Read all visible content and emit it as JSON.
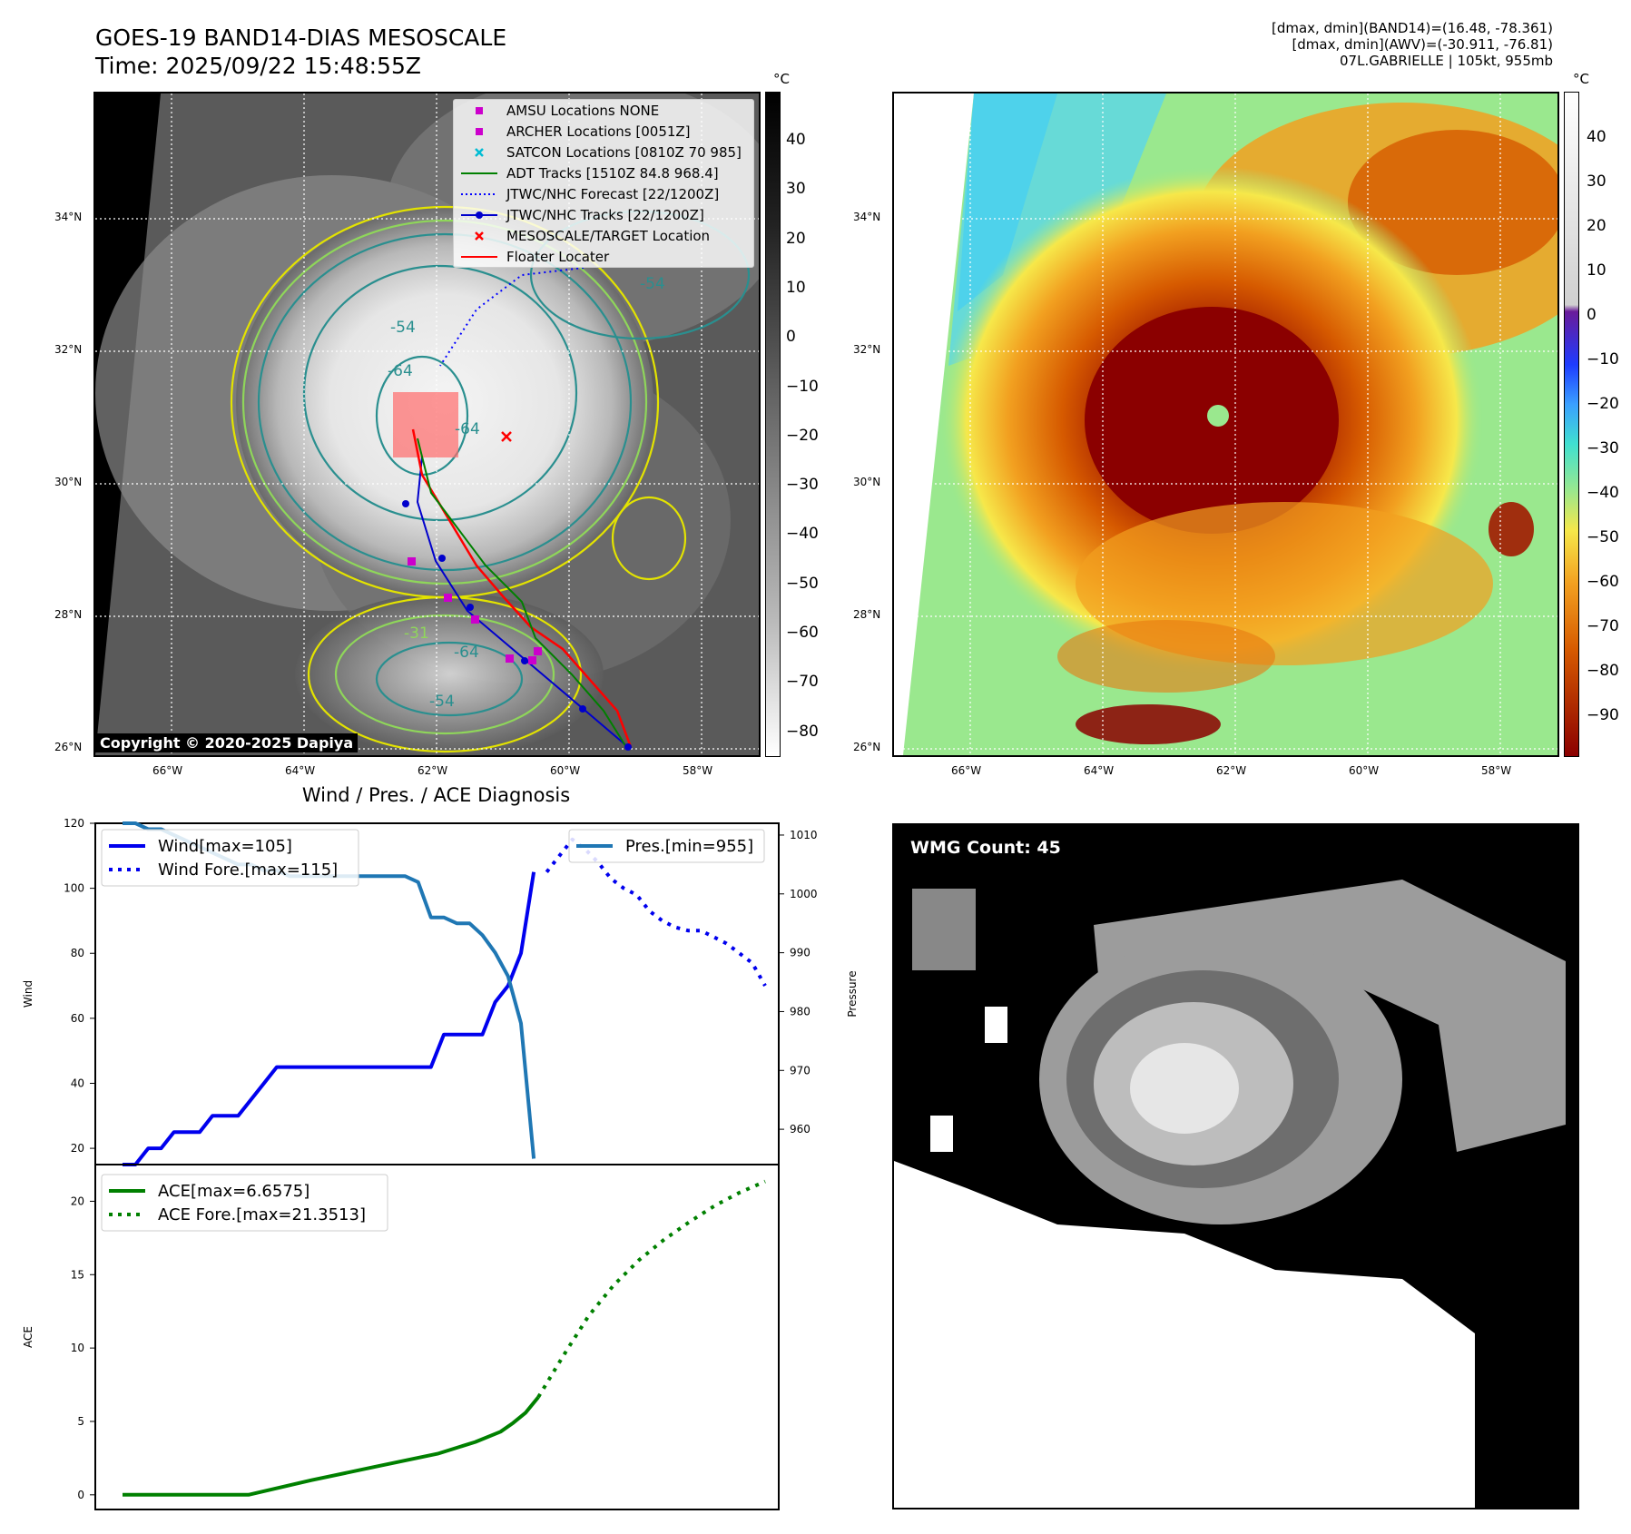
{
  "header": {
    "title_line1": "GOES-19 BAND14-DIAS MESOSCALE",
    "title_line2": "Time: 2025/09/22 15:48:55Z",
    "right_line1": "[dmax, dmin](BAND14)=(16.48, -78.361)",
    "right_line2": "[dmax, dmin](AWV)=(-30.911, -76.81)",
    "right_line3": "07L.GABRIELLE | 105kt, 955mb"
  },
  "maps": {
    "lat_labels": [
      "34°N",
      "32°N",
      "30°N",
      "28°N",
      "26°N"
    ],
    "lon_labels": [
      "66°W",
      "64°W",
      "62°W",
      "60°W",
      "58°W"
    ],
    "copyright": "Copyright © 2020-2025 Dapiya",
    "colorbar_unit": "°C",
    "gray_colorbar_ticks": [
      "40",
      "30",
      "20",
      "10",
      "0",
      "−10",
      "−20",
      "−30",
      "−40",
      "−50",
      "−60",
      "−70",
      "−80"
    ],
    "color_colorbar_ticks": [
      "40",
      "30",
      "20",
      "10",
      "0",
      "−10",
      "−20",
      "−30",
      "−40",
      "−50",
      "−60",
      "−70",
      "−80",
      "−90"
    ],
    "legend": [
      {
        "label": "AMSU Locations NONE",
        "color": "#cc00cc",
        "marker": "square"
      },
      {
        "label": "ARCHER Locations [0051Z]",
        "color": "#cc00cc",
        "marker": "square"
      },
      {
        "label": "SATCON Locations [0810Z 70 985]",
        "color": "#00bcd4",
        "marker": "x"
      },
      {
        "label": "ADT Tracks [1510Z 84.8 968.4]",
        "color": "#008000",
        "marker": "line"
      },
      {
        "label": "JTWC/NHC Forecast [22/1200Z]",
        "color": "#0000ff",
        "marker": "dotted"
      },
      {
        "label": "JTWC/NHC Tracks [22/1200Z]",
        "color": "#0000cc",
        "marker": "line-dot"
      },
      {
        "label": "MESOSCALE/TARGET Location",
        "color": "#ff0000",
        "marker": "x"
      },
      {
        "label": "Floater Locater",
        "color": "#ff0000",
        "marker": "line"
      }
    ],
    "contour_labels": [
      "-54",
      "-64",
      "-64",
      "-54",
      "-64",
      "-54",
      "-31"
    ]
  },
  "wmg": {
    "label": "WMG Count: 45"
  },
  "chart_data": [
    {
      "type": "line",
      "title": "Wind / Pres. / ACE Diagnosis",
      "ylabel": "Wind",
      "ylabel_right": "Pressure",
      "ylim": [
        15,
        120
      ],
      "ylim_right": [
        954,
        1012
      ],
      "y_ticks": [
        20,
        40,
        60,
        80,
        100,
        120
      ],
      "y_ticks_right": [
        960,
        970,
        980,
        990,
        1000,
        1010
      ],
      "series": [
        {
          "name": "Wind[max=105]",
          "color": "#0000ee",
          "style": "solid",
          "x": [
            0,
            1,
            2,
            3,
            4,
            5,
            6,
            7,
            8,
            9,
            10,
            11,
            12,
            13,
            14,
            15,
            16,
            17,
            18,
            19,
            20,
            21,
            22,
            23,
            24,
            25,
            26,
            27,
            28,
            29,
            30,
            31,
            32,
            33
          ],
          "values": [
            15,
            15,
            20,
            20,
            25,
            25,
            25,
            30,
            30,
            30,
            35,
            40,
            45,
            45,
            45,
            45,
            45,
            45,
            45,
            45,
            45,
            45,
            45,
            45,
            45,
            55,
            55,
            55,
            55,
            65,
            70,
            80,
            105,
            null
          ]
        },
        {
          "name": "Wind Fore.[max=115]",
          "color": "#0000ee",
          "style": "dotted",
          "x": [
            33,
            34,
            35,
            36,
            37,
            38,
            39,
            40,
            41,
            42,
            43,
            44,
            45,
            46,
            47,
            48,
            49,
            50
          ],
          "values": [
            105,
            110,
            115,
            112,
            108,
            103,
            100,
            98,
            93,
            90,
            88,
            87,
            87,
            85,
            83,
            80,
            77,
            70
          ]
        },
        {
          "name": "Pres.[min=955]",
          "color": "#1f77b4",
          "style": "solid",
          "axis": "right",
          "x": [
            0,
            1,
            2,
            3,
            4,
            5,
            6,
            7,
            8,
            9,
            10,
            11,
            12,
            13,
            14,
            15,
            16,
            17,
            18,
            19,
            20,
            21,
            22,
            23,
            24,
            25,
            26,
            27,
            28,
            29,
            30,
            31,
            32,
            33
          ],
          "values": [
            1012,
            1012,
            1011,
            1011,
            1010,
            1009,
            1008,
            1007,
            1006,
            1005,
            1005,
            1004,
            1004,
            1003,
            1003,
            1003,
            1003,
            1003,
            1003,
            1003,
            1003,
            1003,
            1003,
            1002,
            996,
            996,
            995,
            995,
            993,
            990,
            986,
            978,
            955,
            null
          ]
        }
      ]
    },
    {
      "type": "line",
      "ylabel": "ACE",
      "ylim": [
        -1,
        22.5
      ],
      "y_ticks": [
        0,
        5,
        10,
        15,
        20
      ],
      "series": [
        {
          "name": "ACE[max=6.6575]",
          "color": "#008000",
          "style": "solid",
          "x": [
            0,
            5,
            10,
            15,
            20,
            25,
            28,
            30,
            31,
            32,
            33
          ],
          "values": [
            0,
            0,
            0,
            1.0,
            1.9,
            2.8,
            3.6,
            4.3,
            4.9,
            5.6,
            6.6575
          ]
        },
        {
          "name": "ACE Fore.[max=21.3513]",
          "color": "#008000",
          "style": "dotted",
          "x": [
            33,
            35,
            37,
            39,
            41,
            43,
            45,
            47,
            49,
            51
          ],
          "values": [
            6.6575,
            9.5,
            12.2,
            14.3,
            16.0,
            17.4,
            18.6,
            19.7,
            20.6,
            21.3513
          ]
        }
      ]
    }
  ]
}
